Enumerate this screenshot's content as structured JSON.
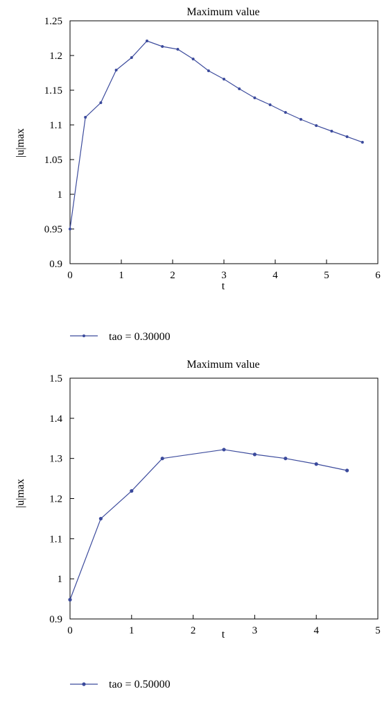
{
  "chart_data": [
    {
      "type": "line",
      "title": "Maximum value",
      "xlabel": "t",
      "ylabel": "|u|max",
      "xlim": [
        0,
        6
      ],
      "ylim": [
        0.9,
        1.25
      ],
      "xticks": [
        "0",
        "1",
        "2",
        "3",
        "4",
        "5",
        "6"
      ],
      "yticks": [
        "0.9",
        "0.95",
        "1",
        "1.05",
        "1.1",
        "1.15",
        "1.2",
        "1.25"
      ],
      "grid": false,
      "legend_position": "bottom-left",
      "line_color": "#3b4a9c",
      "series": [
        {
          "name": "tao = 0.30000",
          "x": [
            0,
            0.3,
            0.6,
            0.9,
            1.2,
            1.5,
            1.8,
            2.1,
            2.4,
            2.7,
            3.0,
            3.3,
            3.6,
            3.9,
            4.2,
            4.5,
            4.8,
            5.1,
            5.4,
            5.7
          ],
          "y": [
            0.95,
            1.111,
            1.132,
            1.179,
            1.197,
            1.221,
            1.213,
            1.209,
            1.195,
            1.178,
            1.166,
            1.152,
            1.139,
            1.129,
            1.118,
            1.108,
            1.099,
            1.091,
            1.083,
            1.075
          ]
        }
      ]
    },
    {
      "type": "line",
      "title": "Maximum value",
      "xlabel": "t",
      "ylabel": "|u|max",
      "xlim": [
        0,
        5
      ],
      "ylim": [
        0.9,
        1.5
      ],
      "xticks": [
        "0",
        "1",
        "2",
        "3",
        "4",
        "5"
      ],
      "yticks": [
        "0.9",
        "1",
        "1.1",
        "1.2",
        "1.3",
        "1.4",
        "1.5"
      ],
      "grid": false,
      "legend_position": "bottom-left",
      "line_color": "#3b4a9c",
      "series": [
        {
          "name": "tao = 0.50000",
          "x": [
            0,
            0.5,
            1.0,
            1.5,
            2.5,
            3.0,
            3.5,
            4.0,
            4.5
          ],
          "y": [
            0.948,
            1.15,
            1.219,
            1.3,
            1.322,
            1.31,
            1.3,
            1.286,
            1.27
          ]
        }
      ]
    }
  ]
}
